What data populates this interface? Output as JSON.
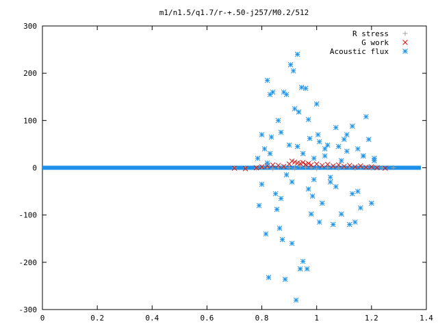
{
  "chart_data": {
    "type": "scatter",
    "title": "m1/n1.5/q1.7/r-+.50-j257/M0.2/512",
    "xlabel": "",
    "ylabel": "",
    "xlim": [
      0,
      1.4
    ],
    "ylim": [
      -300,
      300
    ],
    "xticks": [
      "0",
      "0.2",
      "0.4",
      "0.6",
      "0.8",
      "1",
      "1.2",
      "1.4"
    ],
    "yticks": [
      "-300",
      "-200",
      "-100",
      "0",
      "100",
      "200",
      "300"
    ],
    "grid": false,
    "legend": "top-right",
    "series": [
      {
        "name": "R stress",
        "marker": "plus",
        "color": "#a0a0a0",
        "x": [
          0.7,
          0.74,
          0.78,
          0.8,
          0.82,
          0.84,
          0.86,
          0.88,
          0.9,
          0.92,
          0.94,
          0.96,
          0.98,
          1.0,
          1.02,
          1.04,
          1.06,
          1.08,
          1.1,
          1.12,
          1.14,
          1.16,
          1.18,
          1.2,
          1.22,
          1.24,
          1.28
        ],
        "y": [
          0,
          0,
          -1,
          1,
          0,
          -2,
          1,
          2,
          0,
          -1,
          3,
          1,
          0,
          -2,
          2,
          0,
          1,
          -1,
          0,
          2,
          -1,
          1,
          0,
          -1,
          1,
          0,
          0
        ]
      },
      {
        "name": "G work",
        "marker": "cross",
        "color": "#e01010",
        "x": [
          0.7,
          0.74,
          0.78,
          0.8,
          0.82,
          0.84,
          0.86,
          0.88,
          0.9,
          0.91,
          0.92,
          0.93,
          0.94,
          0.95,
          0.96,
          0.97,
          0.98,
          1.0,
          1.02,
          1.04,
          1.06,
          1.08,
          1.1,
          1.12,
          1.14,
          1.16,
          1.18,
          1.2,
          1.22,
          1.25
        ],
        "y": [
          -1,
          -2,
          0,
          2,
          4,
          6,
          5,
          3,
          8,
          14,
          12,
          10,
          9,
          11,
          7,
          9,
          6,
          8,
          5,
          7,
          4,
          6,
          3,
          5,
          2,
          4,
          1,
          2,
          0,
          -1
        ]
      },
      {
        "name": "Acoustic flux",
        "marker": "star",
        "color": "#1e90e8",
        "x": [
          0.785,
          0.79,
          0.8,
          0.81,
          0.815,
          0.82,
          0.825,
          0.83,
          0.835,
          0.84,
          0.85,
          0.855,
          0.86,
          0.865,
          0.87,
          0.875,
          0.88,
          0.885,
          0.89,
          0.9,
          0.905,
          0.91,
          0.915,
          0.92,
          0.925,
          0.93,
          0.935,
          0.94,
          0.945,
          0.95,
          0.96,
          0.965,
          0.97,
          0.975,
          0.98,
          0.985,
          0.99,
          1.0,
          1.005,
          1.01,
          1.02,
          1.03,
          1.04,
          1.05,
          1.06,
          1.07,
          1.08,
          1.09,
          1.1,
          1.11,
          1.12,
          1.13,
          1.14,
          1.15,
          1.16,
          1.17,
          1.18,
          1.19,
          1.2,
          1.21,
          0.8,
          0.83,
          0.87,
          0.91,
          0.95,
          0.99,
          1.03,
          1.07,
          1.11,
          1.15,
          0.82,
          0.89,
          0.93,
          0.97,
          1.01,
          1.05,
          1.09,
          1.13,
          1.17,
          1.21
        ],
        "y": [
          20,
          -80,
          70,
          40,
          -140,
          185,
          -232,
          155,
          65,
          160,
          -55,
          -88,
          100,
          -128,
          75,
          -152,
          160,
          -236,
          155,
          48,
          218,
          -160,
          205,
          125,
          -280,
          240,
          118,
          -214,
          170,
          -198,
          168,
          -214,
          102,
          62,
          -98,
          -60,
          20,
          135,
          70,
          -115,
          -75,
          25,
          48,
          -20,
          -120,
          85,
          45,
          -98,
          60,
          70,
          -120,
          88,
          -115,
          40,
          -85,
          25,
          108,
          60,
          -75,
          20,
          -35,
          30,
          -65,
          -30,
          30,
          -25,
          40,
          -40,
          35,
          -50,
          10,
          -15,
          45,
          -45,
          55,
          -30,
          15,
          -55,
          25,
          15
        ]
      }
    ]
  }
}
